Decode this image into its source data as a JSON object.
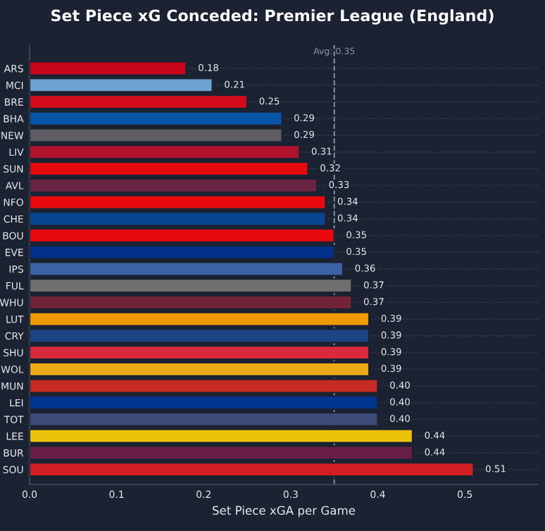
{
  "chart_data": {
    "type": "bar",
    "orientation": "horizontal",
    "title": "Set Piece xG Conceded: Premier League (England)",
    "xlabel": "Set Piece xGA per Game",
    "categories": [
      "ARS",
      "MCI",
      "BRE",
      "BHA",
      "NEW",
      "LIV",
      "SUN",
      "AVL",
      "NFO",
      "CHE",
      "BOU",
      "EVE",
      "IPS",
      "FUL",
      "WHU",
      "LUT",
      "CRY",
      "SHU",
      "WOL",
      "MUN",
      "LEI",
      "TOT",
      "LEE",
      "BUR",
      "SOU"
    ],
    "values": [
      0.18,
      0.21,
      0.25,
      0.29,
      0.29,
      0.31,
      0.32,
      0.33,
      0.34,
      0.34,
      0.35,
      0.35,
      0.36,
      0.37,
      0.37,
      0.39,
      0.39,
      0.39,
      0.39,
      0.4,
      0.4,
      0.4,
      0.44,
      0.44,
      0.51
    ],
    "value_labels": [
      "0.18",
      "0.21",
      "0.25",
      "0.29",
      "0.29",
      "0.31",
      "0.32",
      "0.33",
      "0.34",
      "0.34",
      "0.35",
      "0.35",
      "0.36",
      "0.37",
      "0.37",
      "0.39",
      "0.39",
      "0.39",
      "0.39",
      "0.40",
      "0.40",
      "0.40",
      "0.44",
      "0.44",
      "0.51"
    ],
    "colors": [
      "#c8061a",
      "#6ca3d2",
      "#d20c1c",
      "#0a56a8",
      "#5f5d63",
      "#b2122d",
      "#e60a0c",
      "#6a2544",
      "#e80a0e",
      "#08478f",
      "#e80a0e",
      "#00308a",
      "#3a64a3",
      "#6f6f6f",
      "#732338",
      "#f09a04",
      "#1b4585",
      "#d82a3a",
      "#eca918",
      "#c72a22",
      "#003590",
      "#3e4a76",
      "#ecc10a",
      "#6a1d45",
      "#d11f24"
    ],
    "xlim": [
      0,
      0.584
    ],
    "xticks": [
      {
        "value": 0,
        "label": "0.0"
      },
      0.1,
      0.2,
      0.3,
      0.4,
      0.5
    ],
    "ref_lines": [
      {
        "axis": "x",
        "value": 0.35,
        "label": "Avg: 0.35",
        "color": "#8a93a3",
        "line_style": "dashed"
      }
    ],
    "grid": "y",
    "legend": false
  }
}
